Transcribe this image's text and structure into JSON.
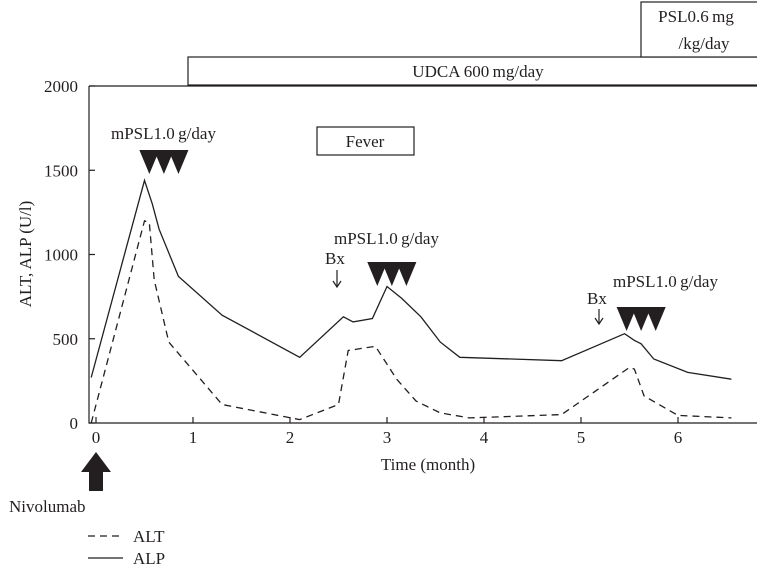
{
  "chart_data": {
    "type": "line",
    "title": "",
    "xlabel": "Time (month)",
    "ylabel": "ALT, ALP (U/l)",
    "xlim": [
      -0.05,
      6.55
    ],
    "ylim": [
      0,
      2000
    ],
    "xticks": [
      0,
      1,
      2,
      3,
      4,
      5,
      6
    ],
    "yticks": [
      0,
      500,
      1000,
      1500,
      2000
    ],
    "grid": false,
    "legend_position": "bottom-left",
    "series": [
      {
        "name": "ALT",
        "style": "dashed",
        "x": [
          -0.05,
          0.5,
          0.55,
          0.6,
          0.75,
          1.3,
          2.1,
          2.5,
          2.6,
          2.88,
          3.1,
          3.3,
          3.55,
          3.85,
          4.8,
          5.5,
          5.55,
          5.65,
          6.0,
          6.55
        ],
        "y": [
          0,
          1200,
          1190,
          850,
          480,
          110,
          20,
          110,
          430,
          455,
          260,
          130,
          60,
          30,
          50,
          330,
          320,
          160,
          45,
          30
        ]
      },
      {
        "name": "ALP",
        "style": "solid",
        "x": [
          -0.05,
          0.5,
          0.58,
          0.65,
          0.85,
          1.3,
          2.1,
          2.55,
          2.65,
          2.85,
          3.0,
          3.15,
          3.35,
          3.55,
          3.75,
          4.8,
          5.45,
          5.55,
          5.62,
          5.75,
          6.1,
          6.55
        ],
        "y": [
          270,
          1440,
          1300,
          1150,
          870,
          640,
          390,
          630,
          600,
          620,
          810,
          740,
          630,
          480,
          390,
          370,
          530,
          490,
          470,
          380,
          300,
          260
        ]
      }
    ],
    "annotations": {
      "treatment_udca": "UDCA 600 mg/day",
      "treatment_psl_line1": "PSL0.6 mg",
      "treatment_psl_line2": "/kg/day",
      "fever": "Fever",
      "mpsl_1": "mPSL1.0 g/day",
      "mpsl_2": "mPSL1.0 g/day",
      "mpsl_3": "mPSL1.0 g/day",
      "bx_1": "Bx",
      "bx_2": "Bx",
      "nivolumab": "Nivolumab",
      "legend_alt": "ALT",
      "legend_alp": "ALP"
    },
    "mpsl_markers": [
      [
        0.55,
        0.7,
        0.85
      ],
      [
        2.9,
        3.05,
        3.2
      ],
      [
        5.47,
        5.62,
        5.77
      ]
    ]
  }
}
